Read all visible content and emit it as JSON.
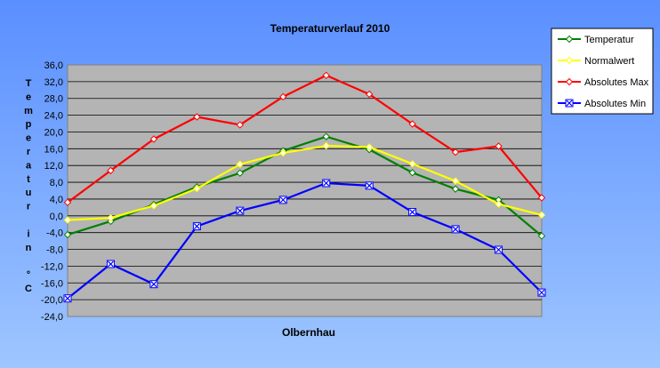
{
  "chart_data": {
    "type": "line",
    "title": "Temperaturverlauf  2010",
    "xlabel": "Olbernhau",
    "ylabel": "Temperatur in °C",
    "ylabel_letters": [
      "T",
      "e",
      "m",
      "p",
      "e",
      "r",
      "a",
      "t",
      "u",
      "r",
      "",
      "i",
      "n",
      "",
      "°",
      "C"
    ],
    "ylim": [
      -24,
      36
    ],
    "ytick_step": 4,
    "yticks": [
      "36,0",
      "32,0",
      "28,0",
      "24,0",
      "20,0",
      "16,0",
      "12,0",
      "8,0",
      "4,0",
      "0,0",
      "-4,0",
      "-8,0",
      "-12,0",
      "-16,0",
      "-20,0",
      "-24,0"
    ],
    "grid": true,
    "legend_position": "top-right",
    "plot_background": "#b4b4b4",
    "series": [
      {
        "name": "Temperatur",
        "color": "#008000",
        "marker": "diamond",
        "values": [
          -4.5,
          -1.3,
          2.7,
          6.9,
          10.2,
          15.5,
          18.9,
          15.8,
          10.3,
          6.4,
          3.8,
          -4.8
        ]
      },
      {
        "name": "Normalwert",
        "color": "#ffff00",
        "marker": "diamond",
        "values": [
          -1.0,
          -0.5,
          2.4,
          6.5,
          12.3,
          15.0,
          16.7,
          16.4,
          12.4,
          8.3,
          2.8,
          0.2
        ]
      },
      {
        "name": "Absolutes Max",
        "color": "#ff0000",
        "marker": "diamond",
        "values": [
          3.2,
          10.8,
          18.3,
          23.6,
          21.7,
          28.4,
          33.5,
          29.0,
          21.9,
          15.2,
          16.6,
          4.3
        ]
      },
      {
        "name": "Absolutes Min",
        "color": "#0000ff",
        "marker": "x",
        "values": [
          -19.7,
          -11.5,
          -16.3,
          -2.5,
          1.2,
          3.8,
          7.8,
          7.2,
          0.9,
          -3.2,
          -8.1,
          -18.3
        ]
      }
    ]
  }
}
